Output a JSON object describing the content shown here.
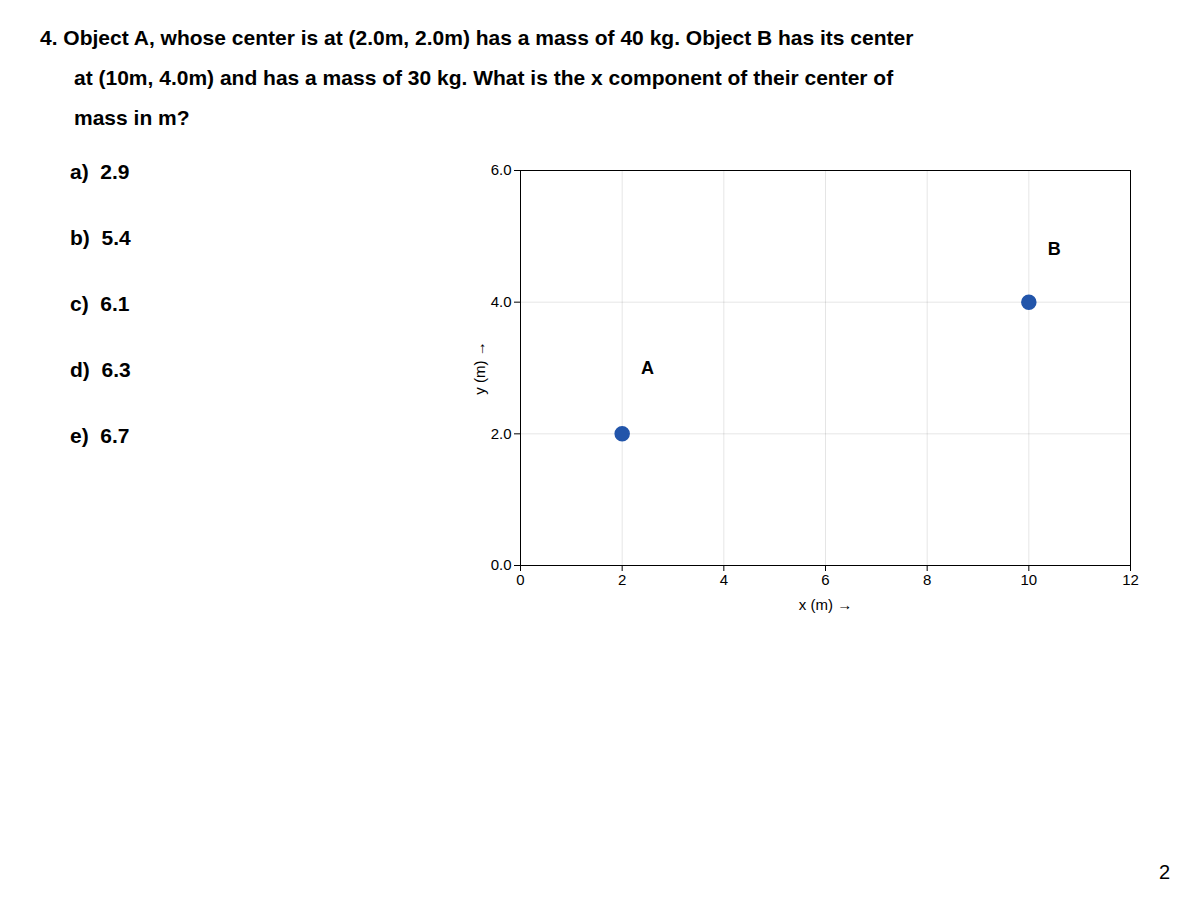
{
  "chart_data": {
    "type": "scatter",
    "title": [
      "4.  Object A, whose center is at (2.0m, 2.0m) has a mass of 40 kg.   Object B has its center",
      "at (10m, 4.0m) and has a mass of 30 kg.   What is the x component of their center of",
      "mass in m?"
    ],
    "x": [
      2.0,
      10.0
    ],
    "values": [
      2.0,
      4.0
    ],
    "color": "#2255aa",
    "marker": "circle",
    "xlabel": "x (m)",
    "ylabel": "y (m)",
    "xlim": [
      0,
      12
    ],
    "ylim": [
      0,
      6
    ],
    "xticks": [
      0,
      2,
      4,
      6,
      8,
      10,
      12
    ],
    "yticks": [
      0,
      2,
      4,
      6
    ],
    "grid": true,
    "annotations": [
      {
        "text": "A",
        "x": 2.5,
        "y": 3.0
      },
      {
        "text": "B",
        "x": 10.5,
        "y": 4.8
      },
      {
        "text": "a)  2.9"
      },
      {
        "text": "b)  5.4"
      },
      {
        "text": "c)  6.1"
      },
      {
        "text": "d)  6.3"
      },
      {
        "text": "e)  6.7"
      },
      {
        "text": "2"
      }
    ]
  }
}
